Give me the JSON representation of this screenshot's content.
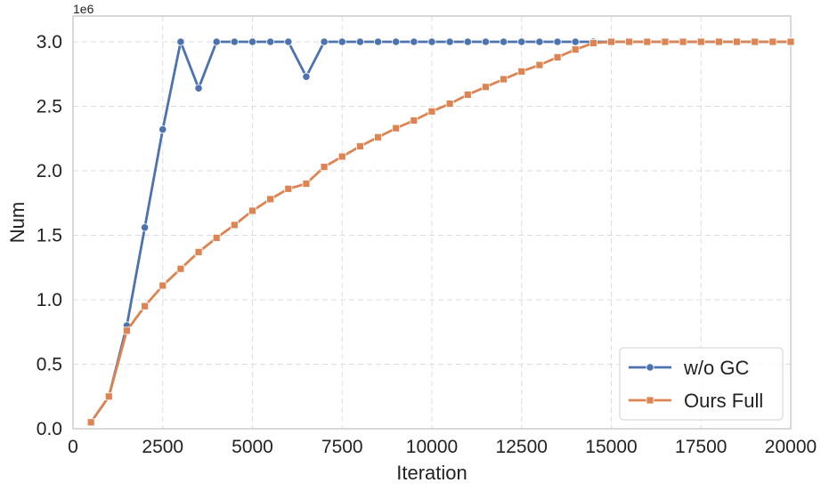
{
  "chart_data": {
    "type": "line",
    "title": "",
    "xlabel": "Iteration",
    "ylabel": "Num",
    "y_offset_label": "1e6",
    "xlim": [
      0,
      20000
    ],
    "ylim": [
      0,
      3200000
    ],
    "x_ticks": [
      0,
      2500,
      5000,
      7500,
      10000,
      12500,
      15000,
      17500,
      20000
    ],
    "x_tick_labels": [
      "0",
      "2500",
      "5000",
      "7500",
      "10000",
      "12500",
      "15000",
      "17500",
      "20000"
    ],
    "y_ticks": [
      0,
      500000,
      1000000,
      1500000,
      2000000,
      2500000,
      3000000
    ],
    "y_tick_labels": [
      "0.0",
      "0.5",
      "1.0",
      "1.5",
      "2.0",
      "2.5",
      "3.0"
    ],
    "grid": true,
    "legend_position": "bottom-right",
    "series": [
      {
        "name": "w/o GC",
        "color": "#4c72b0",
        "marker": "circle",
        "x": [
          500,
          1000,
          1500,
          2000,
          2500,
          3000,
          3500,
          4000,
          4500,
          5000,
          5500,
          6000,
          6500,
          7000,
          7500,
          8000,
          8500,
          9000,
          9500,
          10000,
          10500,
          11000,
          11500,
          12000,
          12500,
          13000,
          13500,
          14000,
          14500,
          15000,
          15500,
          16000,
          16500,
          17000,
          17500,
          18000,
          18500,
          19000,
          19500,
          20000
        ],
        "y": [
          50000,
          250000,
          800000,
          1560000,
          2320000,
          3000000,
          2640000,
          3000000,
          3000000,
          3000000,
          3000000,
          3000000,
          2730000,
          3000000,
          3000000,
          3000000,
          3000000,
          3000000,
          3000000,
          3000000,
          3000000,
          3000000,
          3000000,
          3000000,
          3000000,
          3000000,
          3000000,
          3000000,
          3000000,
          3000000,
          3000000,
          3000000,
          3000000,
          3000000,
          3000000,
          3000000,
          3000000,
          3000000,
          3000000,
          3000000
        ]
      },
      {
        "name": "Ours Full",
        "color": "#dd8452",
        "marker": "square",
        "x": [
          500,
          1000,
          1500,
          2000,
          2500,
          3000,
          3500,
          4000,
          4500,
          5000,
          5500,
          6000,
          6500,
          7000,
          7500,
          8000,
          8500,
          9000,
          9500,
          10000,
          10500,
          11000,
          11500,
          12000,
          12500,
          13000,
          13500,
          14000,
          14500,
          15000,
          15500,
          16000,
          16500,
          17000,
          17500,
          18000,
          18500,
          19000,
          19500,
          20000
        ],
        "y": [
          50000,
          250000,
          760000,
          950000,
          1110000,
          1240000,
          1370000,
          1480000,
          1580000,
          1690000,
          1780000,
          1860000,
          1900000,
          2030000,
          2110000,
          2190000,
          2260000,
          2330000,
          2390000,
          2460000,
          2520000,
          2590000,
          2650000,
          2710000,
          2770000,
          2820000,
          2880000,
          2940000,
          2990000,
          3000000,
          3000000,
          3000000,
          3000000,
          3000000,
          3000000,
          3000000,
          3000000,
          3000000,
          3000000,
          3000000
        ]
      }
    ]
  }
}
